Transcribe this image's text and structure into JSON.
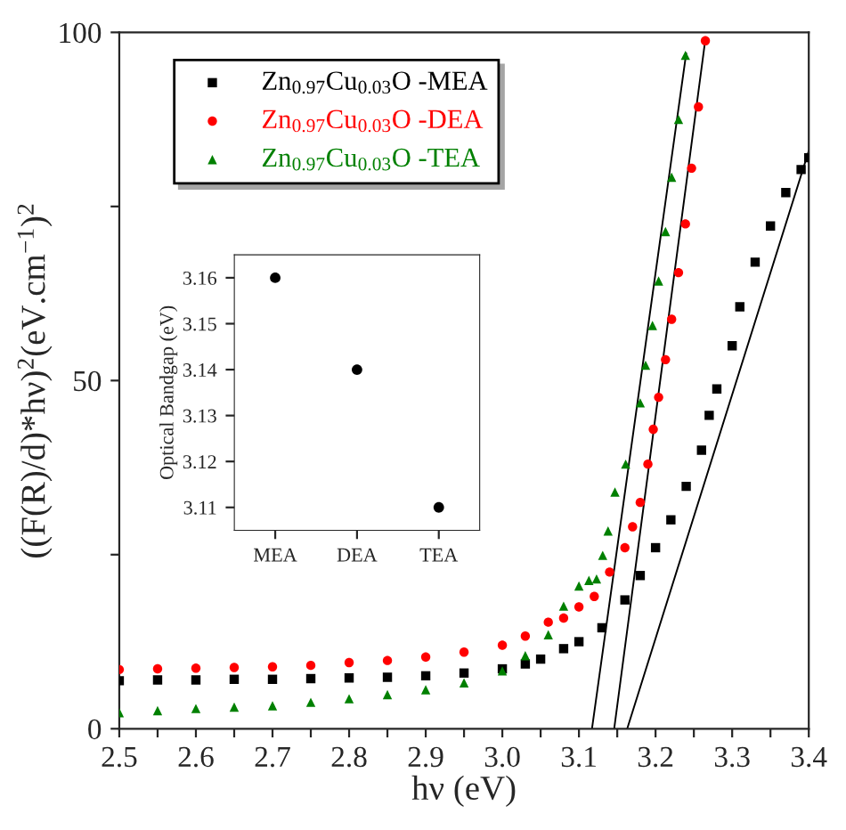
{
  "chart_data": [
    {
      "type": "scatter",
      "xlabel": "hν (eV)",
      "ylabel": "((F(R)/d)*hν)$^{2}$(eV.cm$^{−1}$)$^{2}$",
      "xlim": [
        2.5,
        3.4
      ],
      "ylim": [
        0,
        100
      ],
      "xticks": [
        2.5,
        {
          "value": 2.55,
          "label": null
        },
        2.6,
        {
          "value": 2.65,
          "label": null
        },
        2.7,
        {
          "value": 2.75,
          "label": null
        },
        2.8,
        {
          "value": 2.85,
          "label": null
        },
        2.9,
        {
          "value": 2.95,
          "label": null
        },
        {
          "value": 3.0,
          "label": "3.0"
        },
        {
          "value": 3.05,
          "label": null
        },
        3.1,
        {
          "value": 3.15,
          "label": null
        },
        3.2,
        {
          "value": 3.25,
          "label": null
        },
        3.3,
        {
          "value": 3.35,
          "label": null
        },
        3.4
      ],
      "yticks": [
        0,
        {
          "value": 25,
          "label": null
        },
        50,
        {
          "value": 75,
          "label": null
        },
        100
      ],
      "legend": "top left",
      "series": [
        {
          "name": "Zn$_{0.97}$Cu$_{0.03}$O -MEA",
          "color": "#000000",
          "marker": "square",
          "x": [
            2.5,
            2.55,
            2.6,
            2.65,
            2.7,
            2.75,
            2.8,
            2.85,
            2.9,
            2.95,
            3.0,
            3.03,
            3.05,
            3.08,
            3.1,
            3.13,
            3.16,
            3.18,
            3.2,
            3.22,
            3.24,
            3.26,
            3.27,
            3.28,
            3.3,
            3.31,
            3.33,
            3.35,
            3.37,
            3.39,
            3.4
          ],
          "values": [
            6.9,
            7.0,
            7.0,
            7.1,
            7.1,
            7.2,
            7.3,
            7.4,
            7.6,
            8.0,
            8.6,
            9.3,
            10,
            11.5,
            12.5,
            14.5,
            18.5,
            22,
            26,
            30,
            34.8,
            40,
            45,
            48.8,
            55,
            60.6,
            67,
            72.2,
            77,
            80.3,
            82
          ]
        },
        {
          "name": "Zn$_{0.97}$Cu$_{0.03}$O -DEA",
          "color": "#ff0000",
          "marker": "circle",
          "x": [
            2.5,
            2.55,
            2.6,
            2.65,
            2.7,
            2.75,
            2.8,
            2.85,
            2.9,
            2.95,
            3.0,
            3.03,
            3.06,
            3.08,
            3.1,
            3.12,
            3.14,
            3.16,
            3.17,
            3.18,
            3.19,
            3.197,
            3.204,
            3.213,
            3.221,
            3.23,
            3.239,
            3.247,
            3.256,
            3.265
          ],
          "values": [
            8.5,
            8.6,
            8.7,
            8.8,
            8.9,
            9.1,
            9.5,
            9.8,
            10.3,
            11,
            12,
            13.3,
            15.3,
            15.9,
            17.5,
            19,
            22.5,
            26,
            29,
            32.5,
            38,
            43,
            47.6,
            53,
            58.8,
            65.5,
            72.5,
            80.5,
            89.3,
            98.8
          ]
        },
        {
          "name": "Zn$_{0.97}$Cu$_{0.03}$O -TEA",
          "color": "#008000",
          "marker": "triangle",
          "x": [
            2.5,
            2.55,
            2.6,
            2.65,
            2.7,
            2.75,
            2.8,
            2.85,
            2.9,
            2.95,
            3.0,
            3.03,
            3.06,
            3.08,
            3.1,
            3.113,
            3.123,
            3.131,
            3.138,
            3.147,
            3.161,
            3.18,
            3.187,
            3.196,
            3.204,
            3.213,
            3.221,
            3.23,
            3.239
          ],
          "values": [
            2.3,
            2.6,
            2.9,
            3.1,
            3.3,
            3.8,
            4.3,
            4.9,
            5.6,
            6.6,
            8.3,
            10.5,
            13.5,
            17.6,
            20.5,
            21.3,
            21.5,
            24.9,
            28.4,
            34,
            38,
            46.8,
            52.2,
            57.9,
            64.3,
            71.4,
            79.2,
            87.5,
            96.7
          ]
        },
        {
          "type": "line",
          "color": "#000000",
          "marker": "none",
          "line_style": "solid",
          "x": [
            3.117,
            3.24
          ],
          "values": [
            0,
            97
          ]
        },
        {
          "type": "line",
          "color": "#000000",
          "marker": "none",
          "line_style": "solid",
          "x": [
            3.146,
            3.265
          ],
          "values": [
            0,
            99
          ]
        },
        {
          "type": "line",
          "color": "#000000",
          "marker": "none",
          "line_style": "solid",
          "x": [
            3.163,
            3.4
          ],
          "values": [
            0,
            83
          ]
        }
      ]
    },
    {
      "type": "scatter",
      "ylabel": "Optical Bandgap (eV)",
      "categories": [
        "MEA",
        "DEA",
        "TEA"
      ],
      "values": [
        3.16,
        3.14,
        3.11
      ],
      "color": "#000000",
      "marker": "circle",
      "ylim": [
        3.105,
        3.165
      ],
      "yticks": [
        3.11,
        3.12,
        3.13,
        3.14,
        3.15,
        3.16
      ]
    }
  ]
}
